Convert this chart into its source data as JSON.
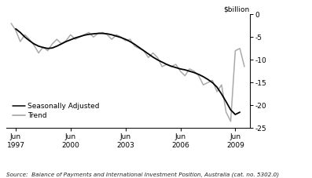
{
  "title": "",
  "ylabel": "$billion",
  "ylim": [
    -25,
    0
  ],
  "yticks": [
    0,
    -5,
    -10,
    -15,
    -20,
    -25
  ],
  "xtick_positions": [
    1997.417,
    2000.417,
    2003.417,
    2006.417,
    2009.417
  ],
  "xtick_labels": [
    "Jun\n1997",
    "Jun\n2000",
    "Jun\n2003",
    "Jun\n2006",
    "Jun\n2009"
  ],
  "source_text": "Source:  Balance of Payments and International Investment Position, Australia (cat. no. 5302.0)",
  "legend_entries": [
    "Trend",
    "Seasonally Adjusted"
  ],
  "trend_color": "#000000",
  "seasonal_color": "#aaaaaa",
  "trend_lw": 1.3,
  "seasonal_lw": 1.1,
  "background_color": "#ffffff",
  "trend_x": [
    1997.417,
    1997.667,
    1997.917,
    1998.167,
    1998.417,
    1998.667,
    1998.917,
    1999.167,
    1999.417,
    1999.667,
    1999.917,
    2000.167,
    2000.417,
    2000.667,
    2000.917,
    2001.167,
    2001.417,
    2001.667,
    2001.917,
    2002.167,
    2002.417,
    2002.667,
    2002.917,
    2003.167,
    2003.417,
    2003.667,
    2003.917,
    2004.167,
    2004.417,
    2004.667,
    2004.917,
    2005.167,
    2005.417,
    2005.667,
    2005.917,
    2006.167,
    2006.417,
    2006.667,
    2006.917,
    2007.167,
    2007.417,
    2007.667,
    2007.917,
    2008.167,
    2008.417,
    2008.667,
    2008.917,
    2009.167,
    2009.417,
    2009.667
  ],
  "trend_y": [
    -3.2,
    -4.0,
    -5.0,
    -5.8,
    -6.5,
    -7.0,
    -7.3,
    -7.5,
    -7.4,
    -7.0,
    -6.5,
    -6.0,
    -5.6,
    -5.2,
    -4.9,
    -4.6,
    -4.4,
    -4.3,
    -4.2,
    -4.2,
    -4.3,
    -4.5,
    -4.8,
    -5.1,
    -5.5,
    -6.0,
    -6.6,
    -7.3,
    -8.0,
    -8.7,
    -9.4,
    -10.0,
    -10.5,
    -11.0,
    -11.4,
    -11.7,
    -12.0,
    -12.2,
    -12.5,
    -12.8,
    -13.2,
    -13.7,
    -14.3,
    -15.0,
    -16.0,
    -17.5,
    -19.2,
    -21.0,
    -22.0,
    -21.5
  ],
  "seasonal_x": [
    1997.167,
    1997.417,
    1997.667,
    1997.917,
    1998.167,
    1998.417,
    1998.667,
    1998.917,
    1999.167,
    1999.417,
    1999.667,
    1999.917,
    2000.167,
    2000.417,
    2000.667,
    2000.917,
    2001.167,
    2001.417,
    2001.667,
    2001.917,
    2002.167,
    2002.417,
    2002.667,
    2002.917,
    2003.167,
    2003.417,
    2003.667,
    2003.917,
    2004.167,
    2004.417,
    2004.667,
    2004.917,
    2005.167,
    2005.417,
    2005.667,
    2005.917,
    2006.167,
    2006.417,
    2006.667,
    2006.917,
    2007.167,
    2007.417,
    2007.667,
    2007.917,
    2008.167,
    2008.417,
    2008.667,
    2008.917,
    2009.167,
    2009.417,
    2009.667,
    2009.917
  ],
  "seasonal_y": [
    -2.0,
    -3.5,
    -6.0,
    -4.5,
    -5.5,
    -6.8,
    -8.5,
    -7.2,
    -8.0,
    -6.5,
    -5.5,
    -6.5,
    -5.8,
    -4.5,
    -5.5,
    -5.0,
    -4.5,
    -4.0,
    -5.0,
    -4.2,
    -4.0,
    -4.5,
    -5.5,
    -4.5,
    -5.0,
    -5.8,
    -5.5,
    -7.0,
    -7.5,
    -8.0,
    -9.5,
    -8.5,
    -9.5,
    -11.5,
    -11.0,
    -11.5,
    -11.0,
    -12.5,
    -13.5,
    -12.0,
    -12.5,
    -13.5,
    -15.5,
    -15.0,
    -14.5,
    -17.0,
    -15.5,
    -21.5,
    -23.5,
    -8.0,
    -7.5,
    -11.5
  ],
  "xlim": [
    1996.9,
    2010.2
  ]
}
